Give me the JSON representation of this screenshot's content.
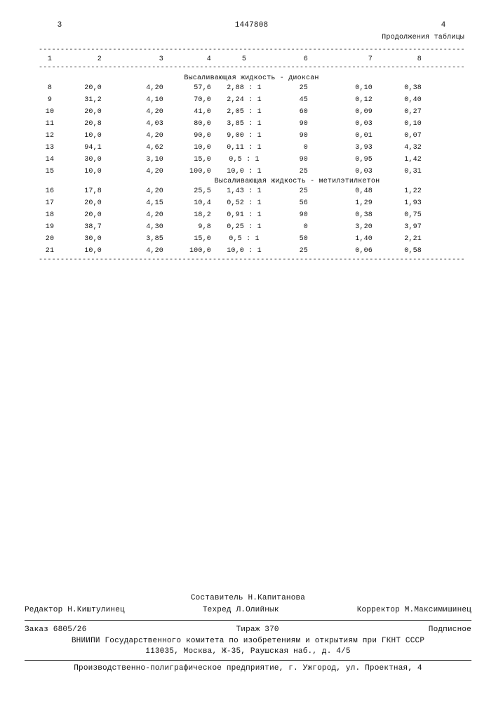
{
  "header": {
    "page_left": "3",
    "doc_number": "1447808",
    "page_right": "4",
    "continuation": "Продолжения таблицы"
  },
  "table": {
    "columns": [
      "1",
      "2",
      "3",
      "4",
      "5",
      "6",
      "7",
      "8"
    ],
    "subhead1": "Высаливающая жидкость - диоксан",
    "subhead2": "Высаливающая жидкость - метилэтилкетон",
    "rows_a": [
      {
        "n": "8",
        "c2": "20,0",
        "c3": "4,20",
        "c4": "57,6",
        "c5": "2,88 : 1",
        "c6": "25",
        "c7": "0,10",
        "c8": "0,38"
      },
      {
        "n": "9",
        "c2": "31,2",
        "c3": "4,10",
        "c4": "70,0",
        "c5": "2,24 : 1",
        "c6": "45",
        "c7": "0,12",
        "c8": "0,40"
      },
      {
        "n": "10",
        "c2": "20,0",
        "c3": "4,20",
        "c4": "41,0",
        "c5": "2,05 : 1",
        "c6": "60",
        "c7": "0,09",
        "c8": "0,27"
      },
      {
        "n": "11",
        "c2": "20,8",
        "c3": "4,03",
        "c4": "80,0",
        "c5": "3,85 : 1",
        "c6": "90",
        "c7": "0,03",
        "c8": "0,10"
      },
      {
        "n": "12",
        "c2": "10,0",
        "c3": "4,20",
        "c4": "90,0",
        "c5": "9,00 : 1",
        "c6": "90",
        "c7": "0,01",
        "c8": "0,07"
      },
      {
        "n": "13",
        "c2": "94,1",
        "c3": "4,62",
        "c4": "10,0",
        "c5": "0,11 : 1",
        "c6": "0",
        "c7": "3,93",
        "c8": "4,32"
      },
      {
        "n": "14",
        "c2": "30,0",
        "c3": "3,10",
        "c4": "15,0",
        "c5": "0,5  : 1",
        "c6": "90",
        "c7": "0,95",
        "c8": "1,42"
      },
      {
        "n": "15",
        "c2": "10,0",
        "c3": "4,20",
        "c4": "100,0",
        "c5": "10,0  : 1",
        "c6": "25",
        "c7": "0,03",
        "c8": "0,31"
      }
    ],
    "rows_b": [
      {
        "n": "16",
        "c2": "17,8",
        "c3": "4,20",
        "c4": "25,5",
        "c5": "1,43 : 1",
        "c6": "25",
        "c7": "0,48",
        "c8": "1,22"
      },
      {
        "n": "17",
        "c2": "20,0",
        "c3": "4,15",
        "c4": "10,4",
        "c5": "0,52 : 1",
        "c6": "56",
        "c7": "1,29",
        "c8": "1,93"
      },
      {
        "n": "18",
        "c2": "20,0",
        "c3": "4,20",
        "c4": "18,2",
        "c5": "0,91 : 1",
        "c6": "90",
        "c7": "0,38",
        "c8": "0,75"
      },
      {
        "n": "19",
        "c2": "38,7",
        "c3": "4,30",
        "c4": "9,8",
        "c5": "0,25 : 1",
        "c6": "0",
        "c7": "3,20",
        "c8": "3,97"
      },
      {
        "n": "20",
        "c2": "30,0",
        "c3": "3,85",
        "c4": "15,0",
        "c5": "0,5  : 1",
        "c6": "50",
        "c7": "1,40",
        "c8": "2,21"
      },
      {
        "n": "21",
        "c2": "10,0",
        "c3": "4,20",
        "c4": "100,0",
        "c5": "10,0  : 1",
        "c6": "25",
        "c7": "0,06",
        "c8": "0,58"
      }
    ]
  },
  "footer": {
    "compiler": "Составитель Н.Капитанова",
    "editor": "Редактор Н.Киштулинец",
    "techred": "Техред Л.Олийнык",
    "corrector": "Корректор М.Максимишинец",
    "order": "Заказ 6805/26",
    "print_run": "Тираж  370",
    "sub": "Подписное",
    "org1": "ВНИИПИ Государственного комитета по изобретениям и открытиям при ГКНТ СССР",
    "org2": "113035, Москва, Ж-35, Раушская наб., д. 4/5",
    "printshop": "Производственно-полиграфическое предприятие, г. Ужгород, ул. Проектная, 4"
  },
  "dash_line": "-----------------------------------------------------------------------------------------------------------"
}
